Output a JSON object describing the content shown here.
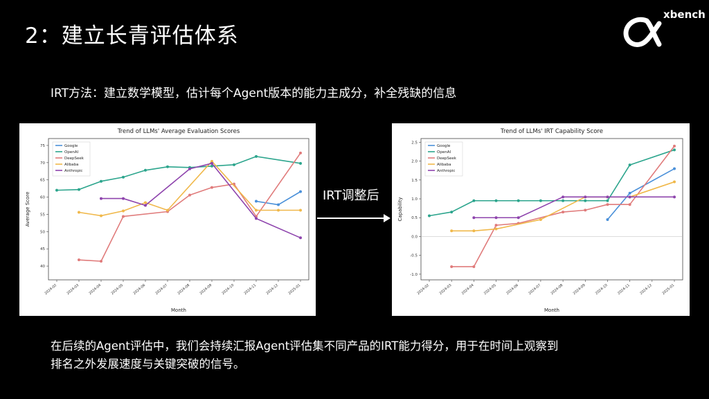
{
  "slide": {
    "title": "2：建立长青评估体系",
    "subtitle": "IRT方法：建立数学模型，估计每个Agent版本的能力主成分，补全残缺的信息",
    "arrow_label": "IRT调整后",
    "bottom_line1": "在后续的Agent评估中，我们会持续汇报Agent评估集不同产品的IRT能力得分，用于在时间上观察到",
    "bottom_line2": "排名之外发展速度与关键突破的信号。"
  },
  "logo": {
    "text": "xbench",
    "icon": "alpha-logo-icon"
  },
  "colors": {
    "Google": "#4a90d9",
    "OpenAI": "#2ca58d",
    "DeepSeek": "#e07b7b",
    "Alibaba": "#f0b84a",
    "Anthropic": "#8e44ad"
  },
  "chart_data": [
    {
      "type": "line",
      "title": "Trend of LLMs' Average Evaluation Scores",
      "xlabel": "Month",
      "ylabel": "Average Score",
      "categories": [
        "2024-02",
        "2024-03",
        "2024-04",
        "2024-05",
        "2024-06",
        "2024-07",
        "2024-08",
        "2024-09",
        "2024-10",
        "2024-11",
        "2024-12",
        "2025-01"
      ],
      "yticks": [
        40,
        45,
        50,
        55,
        60,
        65,
        70,
        75
      ],
      "ylim": [
        36,
        77
      ],
      "legend_position": "top-left",
      "series": [
        {
          "name": "Google",
          "values": [
            null,
            null,
            null,
            null,
            null,
            null,
            null,
            null,
            null,
            58.8,
            57.8,
            61.6
          ]
        },
        {
          "name": "OpenAI",
          "values": [
            62.0,
            62.2,
            64.6,
            65.8,
            67.8,
            68.8,
            68.6,
            69.0,
            69.4,
            71.8,
            null,
            69.8
          ]
        },
        {
          "name": "DeepSeek",
          "values": [
            null,
            41.8,
            41.4,
            54.4,
            null,
            55.8,
            60.6,
            62.8,
            63.8,
            54.4,
            null,
            72.8
          ]
        },
        {
          "name": "Alibaba",
          "values": [
            null,
            55.6,
            54.6,
            56.0,
            58.4,
            56.2,
            null,
            70.4,
            null,
            56.2,
            56.2,
            56.2
          ]
        },
        {
          "name": "Anthropic",
          "values": [
            null,
            null,
            59.6,
            59.6,
            57.6,
            null,
            68.2,
            69.8,
            null,
            53.8,
            null,
            48.2
          ]
        }
      ]
    },
    {
      "type": "line",
      "title": "Trend of LLMs' IRT Capability Score",
      "xlabel": "Month",
      "ylabel": "Capability",
      "categories": [
        "2024-02",
        "2024-03",
        "2024-04",
        "2024-05",
        "2024-06",
        "2024-07",
        "2024-08",
        "2024-09",
        "2024-10",
        "2024-11",
        "2024-12",
        "2025-01"
      ],
      "yticks": [
        -1.0,
        -0.5,
        0.0,
        0.5,
        1.0,
        1.5,
        2.0,
        2.5
      ],
      "ylim": [
        -1.15,
        2.6
      ],
      "legend_position": "top-left",
      "series": [
        {
          "name": "Google",
          "values": [
            null,
            null,
            null,
            null,
            null,
            null,
            null,
            null,
            0.45,
            1.15,
            null,
            1.8
          ]
        },
        {
          "name": "OpenAI",
          "values": [
            0.55,
            0.65,
            0.95,
            0.95,
            0.95,
            0.95,
            0.95,
            0.95,
            0.95,
            1.9,
            null,
            2.3
          ]
        },
        {
          "name": "DeepSeek",
          "values": [
            null,
            -0.8,
            -0.8,
            0.3,
            0.35,
            null,
            0.65,
            0.7,
            0.85,
            0.85,
            null,
            2.4
          ]
        },
        {
          "name": "Alibaba",
          "values": [
            null,
            0.15,
            0.15,
            0.2,
            null,
            0.45,
            null,
            1.05,
            1.05,
            1.05,
            null,
            1.45
          ]
        },
        {
          "name": "Anthropic",
          "values": [
            null,
            null,
            0.5,
            0.5,
            0.5,
            null,
            1.05,
            1.05,
            1.05,
            1.05,
            null,
            1.05
          ]
        }
      ]
    }
  ]
}
